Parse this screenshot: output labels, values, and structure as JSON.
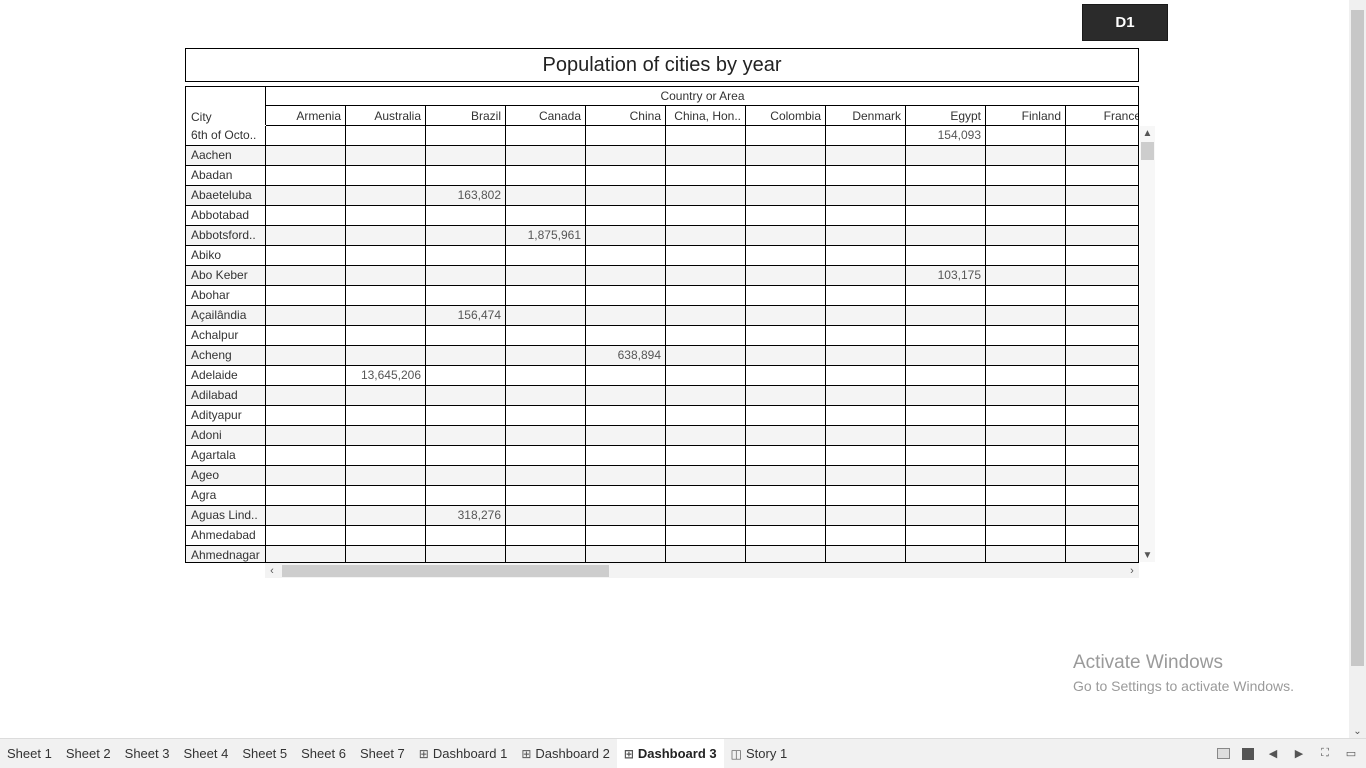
{
  "dashboard_button": {
    "label": "D1"
  },
  "title": "Population of cities by year",
  "table": {
    "row_header": "City",
    "column_group_header": "Country or Area",
    "columns": [
      "Armenia",
      "Australia",
      "Brazil",
      "Canada",
      "China",
      "China, Hon..",
      "Colombia",
      "Denmark",
      "Egypt",
      "Finland",
      "France"
    ],
    "rows": [
      {
        "city": "6th of Octo..",
        "values": [
          "",
          "",
          "",
          "",
          "",
          "",
          "",
          "",
          "154,093",
          "",
          ""
        ]
      },
      {
        "city": "Aachen",
        "values": [
          "",
          "",
          "",
          "",
          "",
          "",
          "",
          "",
          "",
          "",
          ""
        ]
      },
      {
        "city": "Abadan",
        "values": [
          "",
          "",
          "",
          "",
          "",
          "",
          "",
          "",
          "",
          "",
          ""
        ]
      },
      {
        "city": "Abaeteluba",
        "values": [
          "",
          "",
          "163,802",
          "",
          "",
          "",
          "",
          "",
          "",
          "",
          ""
        ]
      },
      {
        "city": "Abbotabad",
        "values": [
          "",
          "",
          "",
          "",
          "",
          "",
          "",
          "",
          "",
          "",
          ""
        ]
      },
      {
        "city": "Abbotsford..",
        "values": [
          "",
          "",
          "",
          "1,875,961",
          "",
          "",
          "",
          "",
          "",
          "",
          ""
        ]
      },
      {
        "city": "Abiko",
        "values": [
          "",
          "",
          "",
          "",
          "",
          "",
          "",
          "",
          "",
          "",
          ""
        ]
      },
      {
        "city": "Abo Keber",
        "values": [
          "",
          "",
          "",
          "",
          "",
          "",
          "",
          "",
          "103,175",
          "",
          ""
        ]
      },
      {
        "city": "Abohar",
        "values": [
          "",
          "",
          "",
          "",
          "",
          "",
          "",
          "",
          "",
          "",
          ""
        ]
      },
      {
        "city": "Açailândia",
        "values": [
          "",
          "",
          "156,474",
          "",
          "",
          "",
          "",
          "",
          "",
          "",
          ""
        ]
      },
      {
        "city": "Achalpur",
        "values": [
          "",
          "",
          "",
          "",
          "",
          "",
          "",
          "",
          "",
          "",
          ""
        ]
      },
      {
        "city": "Acheng",
        "values": [
          "",
          "",
          "",
          "",
          "638,894",
          "",
          "",
          "",
          "",
          "",
          ""
        ]
      },
      {
        "city": "Adelaide",
        "values": [
          "",
          "13,645,206",
          "",
          "",
          "",
          "",
          "",
          "",
          "",
          "",
          ""
        ]
      },
      {
        "city": "Adilabad",
        "values": [
          "",
          "",
          "",
          "",
          "",
          "",
          "",
          "",
          "",
          "",
          ""
        ]
      },
      {
        "city": "Adityapur",
        "values": [
          "",
          "",
          "",
          "",
          "",
          "",
          "",
          "",
          "",
          "",
          ""
        ]
      },
      {
        "city": "Adoni",
        "values": [
          "",
          "",
          "",
          "",
          "",
          "",
          "",
          "",
          "",
          "",
          ""
        ]
      },
      {
        "city": "Agartala",
        "values": [
          "",
          "",
          "",
          "",
          "",
          "",
          "",
          "",
          "",
          "",
          ""
        ]
      },
      {
        "city": "Ageo",
        "values": [
          "",
          "",
          "",
          "",
          "",
          "",
          "",
          "",
          "",
          "",
          ""
        ]
      },
      {
        "city": "Agra",
        "values": [
          "",
          "",
          "",
          "",
          "",
          "",
          "",
          "",
          "",
          "",
          ""
        ]
      },
      {
        "city": "Aguas Lind..",
        "values": [
          "",
          "",
          "318,276",
          "",
          "",
          "",
          "",
          "",
          "",
          "",
          ""
        ]
      },
      {
        "city": "Ahmedabad",
        "values": [
          "",
          "",
          "",
          "",
          "",
          "",
          "",
          "",
          "",
          "",
          ""
        ]
      },
      {
        "city": "Ahmednagar",
        "values": [
          "",
          "",
          "",
          "",
          "",
          "",
          "",
          "",
          "",
          "",
          ""
        ]
      }
    ]
  },
  "watermark": {
    "line1": "Activate Windows",
    "line2": "Go to Settings to activate Windows."
  },
  "tabs": [
    {
      "label": "Sheet 1",
      "icon": "",
      "active": false
    },
    {
      "label": "Sheet 2",
      "icon": "",
      "active": false
    },
    {
      "label": "Sheet 3",
      "icon": "",
      "active": false
    },
    {
      "label": "Sheet 4",
      "icon": "",
      "active": false
    },
    {
      "label": "Sheet 5",
      "icon": "",
      "active": false
    },
    {
      "label": "Sheet 6",
      "icon": "",
      "active": false
    },
    {
      "label": "Sheet 7",
      "icon": "",
      "active": false
    },
    {
      "label": "Dashboard 1",
      "icon": "dashboard-icon",
      "active": false
    },
    {
      "label": "Dashboard 2",
      "icon": "dashboard-icon",
      "active": false
    },
    {
      "label": "Dashboard 3",
      "icon": "dashboard-icon",
      "active": true
    },
    {
      "label": "Story 1",
      "icon": "story-icon",
      "active": false
    }
  ],
  "colors": {
    "button_bg": "#2b2b2b",
    "zebra_row": "#f4f4f4",
    "tabbar_bg": "#f1f1f1"
  }
}
